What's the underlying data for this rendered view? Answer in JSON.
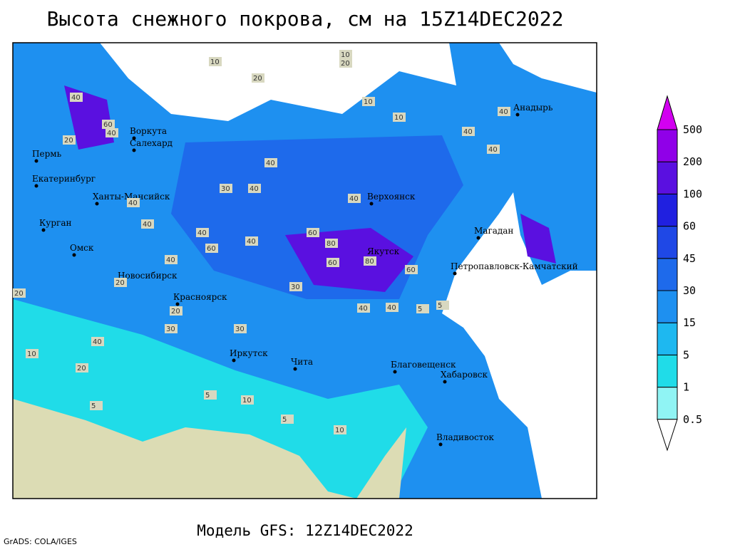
{
  "header": {
    "title": "Высота снежного покрова, см на 15Z14DEC2022"
  },
  "footer": {
    "subtitle": "Модель GFS: 12Z14DEC2022",
    "credit": "GrADS: COLA/IGES"
  },
  "legend": {
    "levels": [
      0.5,
      1,
      5,
      15,
      30,
      45,
      60,
      100,
      200,
      500
    ],
    "colors": [
      "#ffffff",
      "#90f4f4",
      "#20dce8",
      "#1eb8f0",
      "#1e90f0",
      "#1e6aeb",
      "#1f48e6",
      "#2020e0",
      "#5a10e0",
      "#9000e8",
      "#d200f0"
    ]
  },
  "cities": [
    "Пермь",
    "Екатеринбург",
    "Воркута",
    "Салехард",
    "Ханты-Мансийск",
    "Курган",
    "Омск",
    "Новосибирск",
    "Красноярск",
    "Иркутск",
    "Чита",
    "Верхоянск",
    "Якутск",
    "Анадырь",
    "Магадан",
    "Петропавловск-Камчатский",
    "Благовещенск",
    "Хабаровск",
    "Владивосток"
  ],
  "contour_labels": [
    10,
    20,
    40,
    40,
    60,
    40,
    40,
    40,
    40,
    60,
    40,
    40,
    60,
    80,
    80,
    60,
    40,
    20,
    20,
    30,
    40,
    20,
    10,
    10,
    5,
    10,
    5,
    10,
    5,
    20,
    30,
    40,
    60,
    30,
    40,
    40,
    20,
    30,
    5,
    10,
    40,
    40,
    40,
    20,
    10,
    5,
    10
  ]
}
